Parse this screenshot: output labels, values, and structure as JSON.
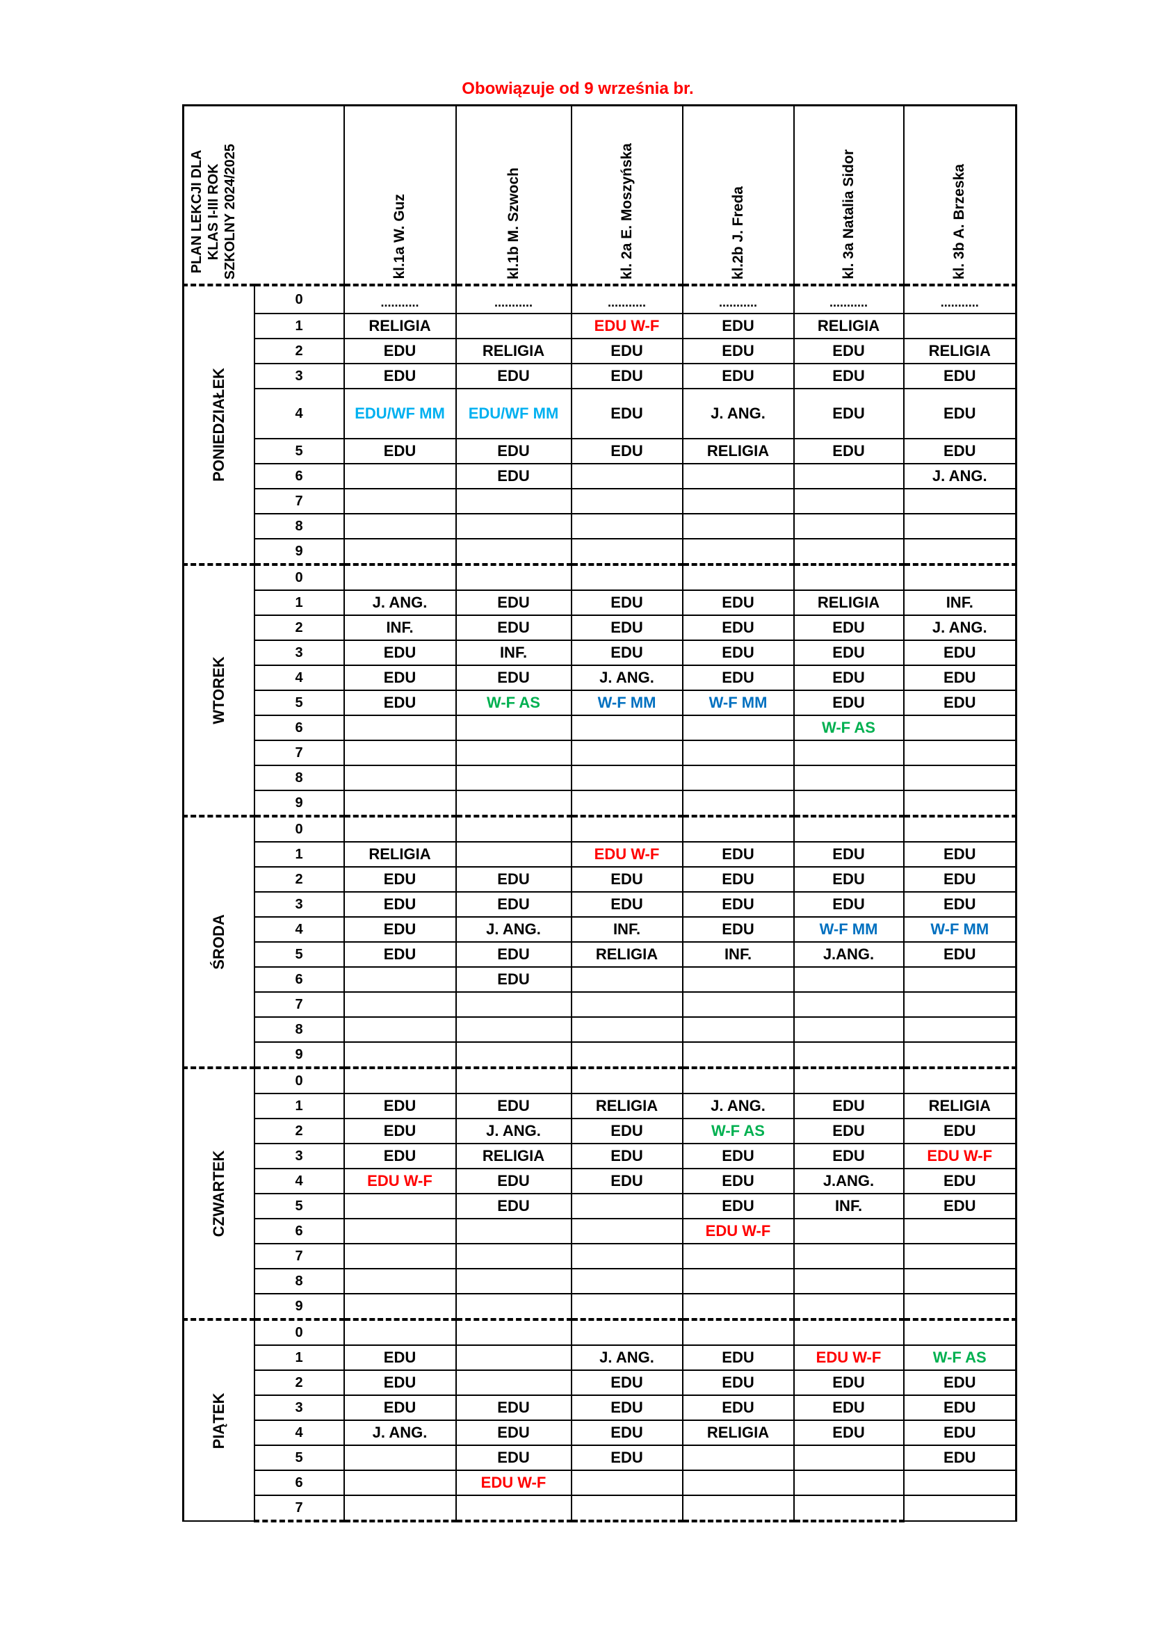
{
  "notice": "Obowiązuje od 9 września br.",
  "header_title": "PLAN LEKCJI DLA\nKLAS I-III ROK\nSZKOLNY 2024/2025",
  "classes": [
    "kl.1a  W. Guz",
    "kl.1b M. Szwoch",
    "kl. 2a E. Moszyńska",
    "kl.2b J. Freda",
    "kl. 3a Natalia Sidor",
    "kl. 3b A. Brzeska"
  ],
  "colors": {
    "red": "#ff0000",
    "cyan": "#00b0f0",
    "green": "#00b050",
    "blue": "#0070c0"
  },
  "days": [
    {
      "name": "PONIEDZIAŁEK",
      "lessons": [
        {
          "n": "0",
          "cells": [
            "...........",
            "...........",
            "...........",
            "...........",
            "...........",
            "..........."
          ]
        },
        {
          "n": "1",
          "cells": [
            "RELIGIA",
            "",
            {
              "t": "EDU W-F",
              "c": "red"
            },
            "EDU",
            "RELIGIA",
            ""
          ]
        },
        {
          "n": "2",
          "cells": [
            "EDU",
            "RELIGIA",
            "EDU",
            "EDU",
            "EDU",
            "RELIGIA"
          ]
        },
        {
          "n": "3",
          "cells": [
            "EDU",
            "EDU",
            "EDU",
            "EDU",
            "EDU",
            "EDU"
          ]
        },
        {
          "n": "4",
          "cells": [
            {
              "t": "EDU/WF MM",
              "c": "cyan"
            },
            {
              "t": "EDU/WF MM",
              "c": "cyan"
            },
            "EDU",
            "J. ANG.",
            "EDU",
            "EDU"
          ]
        },
        {
          "n": "5",
          "cells": [
            "EDU",
            "EDU",
            "EDU",
            "RELIGIA",
            "EDU",
            "EDU"
          ]
        },
        {
          "n": "6",
          "cells": [
            "",
            "EDU",
            "",
            "",
            "",
            "J. ANG."
          ]
        },
        {
          "n": "7",
          "cells": [
            "",
            "",
            "",
            "",
            "",
            ""
          ]
        },
        {
          "n": "8",
          "cells": [
            "",
            "",
            "",
            "",
            "",
            ""
          ]
        },
        {
          "n": "9",
          "cells": [
            "",
            "",
            "",
            "",
            "",
            ""
          ]
        }
      ]
    },
    {
      "name": "WTOREK",
      "lessons": [
        {
          "n": "0",
          "cells": [
            "",
            "",
            "",
            "",
            "",
            ""
          ]
        },
        {
          "n": "1",
          "cells": [
            "J. ANG.",
            "EDU",
            "EDU",
            "EDU",
            "RELIGIA",
            "INF."
          ]
        },
        {
          "n": "2",
          "cells": [
            "INF.",
            "EDU",
            "EDU",
            "EDU",
            "EDU",
            "J. ANG."
          ]
        },
        {
          "n": "3",
          "cells": [
            "EDU",
            "INF.",
            "EDU",
            "EDU",
            "EDU",
            "EDU"
          ]
        },
        {
          "n": "4",
          "cells": [
            "EDU",
            "EDU",
            "J. ANG.",
            "EDU",
            "EDU",
            "EDU"
          ]
        },
        {
          "n": "5",
          "cells": [
            "EDU",
            {
              "t": "W-F AS",
              "c": "green"
            },
            {
              "t": "W-F MM",
              "c": "blue"
            },
            {
              "t": "W-F MM",
              "c": "blue"
            },
            "EDU",
            "EDU"
          ]
        },
        {
          "n": "6",
          "cells": [
            "",
            "",
            "",
            "",
            {
              "t": "W-F AS",
              "c": "green"
            },
            ""
          ]
        },
        {
          "n": "7",
          "cells": [
            "",
            "",
            "",
            "",
            "",
            ""
          ]
        },
        {
          "n": "8",
          "cells": [
            "",
            "",
            "",
            "",
            "",
            ""
          ]
        },
        {
          "n": "9",
          "cells": [
            "",
            "",
            "",
            "",
            "",
            ""
          ]
        }
      ]
    },
    {
      "name": "ŚRODA",
      "lessons": [
        {
          "n": "0",
          "cells": [
            "",
            "",
            "",
            "",
            "",
            ""
          ]
        },
        {
          "n": "1",
          "cells": [
            "RELIGIA",
            "",
            {
              "t": "EDU W-F",
              "c": "red"
            },
            "EDU",
            "EDU",
            "EDU"
          ]
        },
        {
          "n": "2",
          "cells": [
            "EDU",
            "EDU",
            "EDU",
            "EDU",
            "EDU",
            "EDU"
          ]
        },
        {
          "n": "3",
          "cells": [
            "EDU",
            "EDU",
            "EDU",
            "EDU",
            "EDU",
            "EDU"
          ]
        },
        {
          "n": "4",
          "cells": [
            "EDU",
            "J. ANG.",
            "INF.",
            "EDU",
            {
              "t": "W-F MM",
              "c": "blue"
            },
            {
              "t": "W-F MM",
              "c": "blue"
            }
          ]
        },
        {
          "n": "5",
          "cells": [
            "EDU",
            "EDU",
            "RELIGIA",
            "INF.",
            "J.ANG.",
            "EDU"
          ]
        },
        {
          "n": "6",
          "cells": [
            "",
            "EDU",
            "",
            "",
            "",
            ""
          ]
        },
        {
          "n": "7",
          "cells": [
            "",
            "",
            "",
            "",
            "",
            ""
          ]
        },
        {
          "n": "8",
          "cells": [
            "",
            "",
            "",
            "",
            "",
            ""
          ]
        },
        {
          "n": "9",
          "cells": [
            "",
            "",
            "",
            "",
            "",
            ""
          ]
        }
      ]
    },
    {
      "name": "CZWARTEK",
      "lessons": [
        {
          "n": "0",
          "cells": [
            "",
            "",
            "",
            "",
            "",
            ""
          ]
        },
        {
          "n": "1",
          "cells": [
            "EDU",
            "EDU",
            "RELIGIA",
            "J. ANG.",
            "EDU",
            "RELIGIA"
          ]
        },
        {
          "n": "2",
          "cells": [
            "EDU",
            "J. ANG.",
            "EDU",
            {
              "t": "W-F AS",
              "c": "green"
            },
            "EDU",
            "EDU"
          ]
        },
        {
          "n": "3",
          "cells": [
            "EDU",
            "RELIGIA",
            "EDU",
            "EDU",
            "EDU",
            {
              "t": "EDU W-F",
              "c": "red"
            }
          ]
        },
        {
          "n": "4",
          "cells": [
            {
              "t": "EDU W-F",
              "c": "red"
            },
            "EDU",
            "EDU",
            "EDU",
            "J.ANG.",
            "EDU"
          ]
        },
        {
          "n": "5",
          "cells": [
            "",
            "EDU",
            "",
            "EDU",
            "INF.",
            "EDU"
          ]
        },
        {
          "n": "6",
          "cells": [
            "",
            "",
            "",
            {
              "t": "EDU W-F",
              "c": "red"
            },
            "",
            ""
          ]
        },
        {
          "n": "7",
          "cells": [
            "",
            "",
            "",
            "",
            "",
            ""
          ]
        },
        {
          "n": "8",
          "cells": [
            "",
            "",
            "",
            "",
            "",
            ""
          ]
        },
        {
          "n": "9",
          "cells": [
            "",
            "",
            "",
            "",
            "",
            ""
          ]
        }
      ]
    },
    {
      "name": "PIĄTEK",
      "lessons": [
        {
          "n": "0",
          "cells": [
            "",
            "",
            "",
            "",
            "",
            ""
          ]
        },
        {
          "n": "1",
          "cells": [
            "EDU",
            "",
            "J. ANG.",
            "EDU",
            {
              "t": "EDU W-F",
              "c": "red"
            },
            {
              "t": "W-F AS",
              "c": "green"
            }
          ]
        },
        {
          "n": "2",
          "cells": [
            "EDU",
            "",
            "EDU",
            "EDU",
            "EDU",
            "EDU"
          ]
        },
        {
          "n": "3",
          "cells": [
            "EDU",
            "EDU",
            "EDU",
            "EDU",
            "EDU",
            "EDU"
          ]
        },
        {
          "n": "4",
          "cells": [
            "J. ANG.",
            "EDU",
            "EDU",
            "RELIGIA",
            "EDU",
            "EDU"
          ]
        },
        {
          "n": "5",
          "cells": [
            "",
            "EDU",
            "EDU",
            "",
            "",
            "EDU"
          ]
        },
        {
          "n": "6",
          "cells": [
            "",
            {
              "t": "EDU W-F",
              "c": "red"
            },
            "",
            "",
            "",
            ""
          ]
        },
        {
          "n": "7",
          "cells": [
            "",
            "",
            "",
            "",
            "",
            ""
          ]
        }
      ]
    }
  ]
}
